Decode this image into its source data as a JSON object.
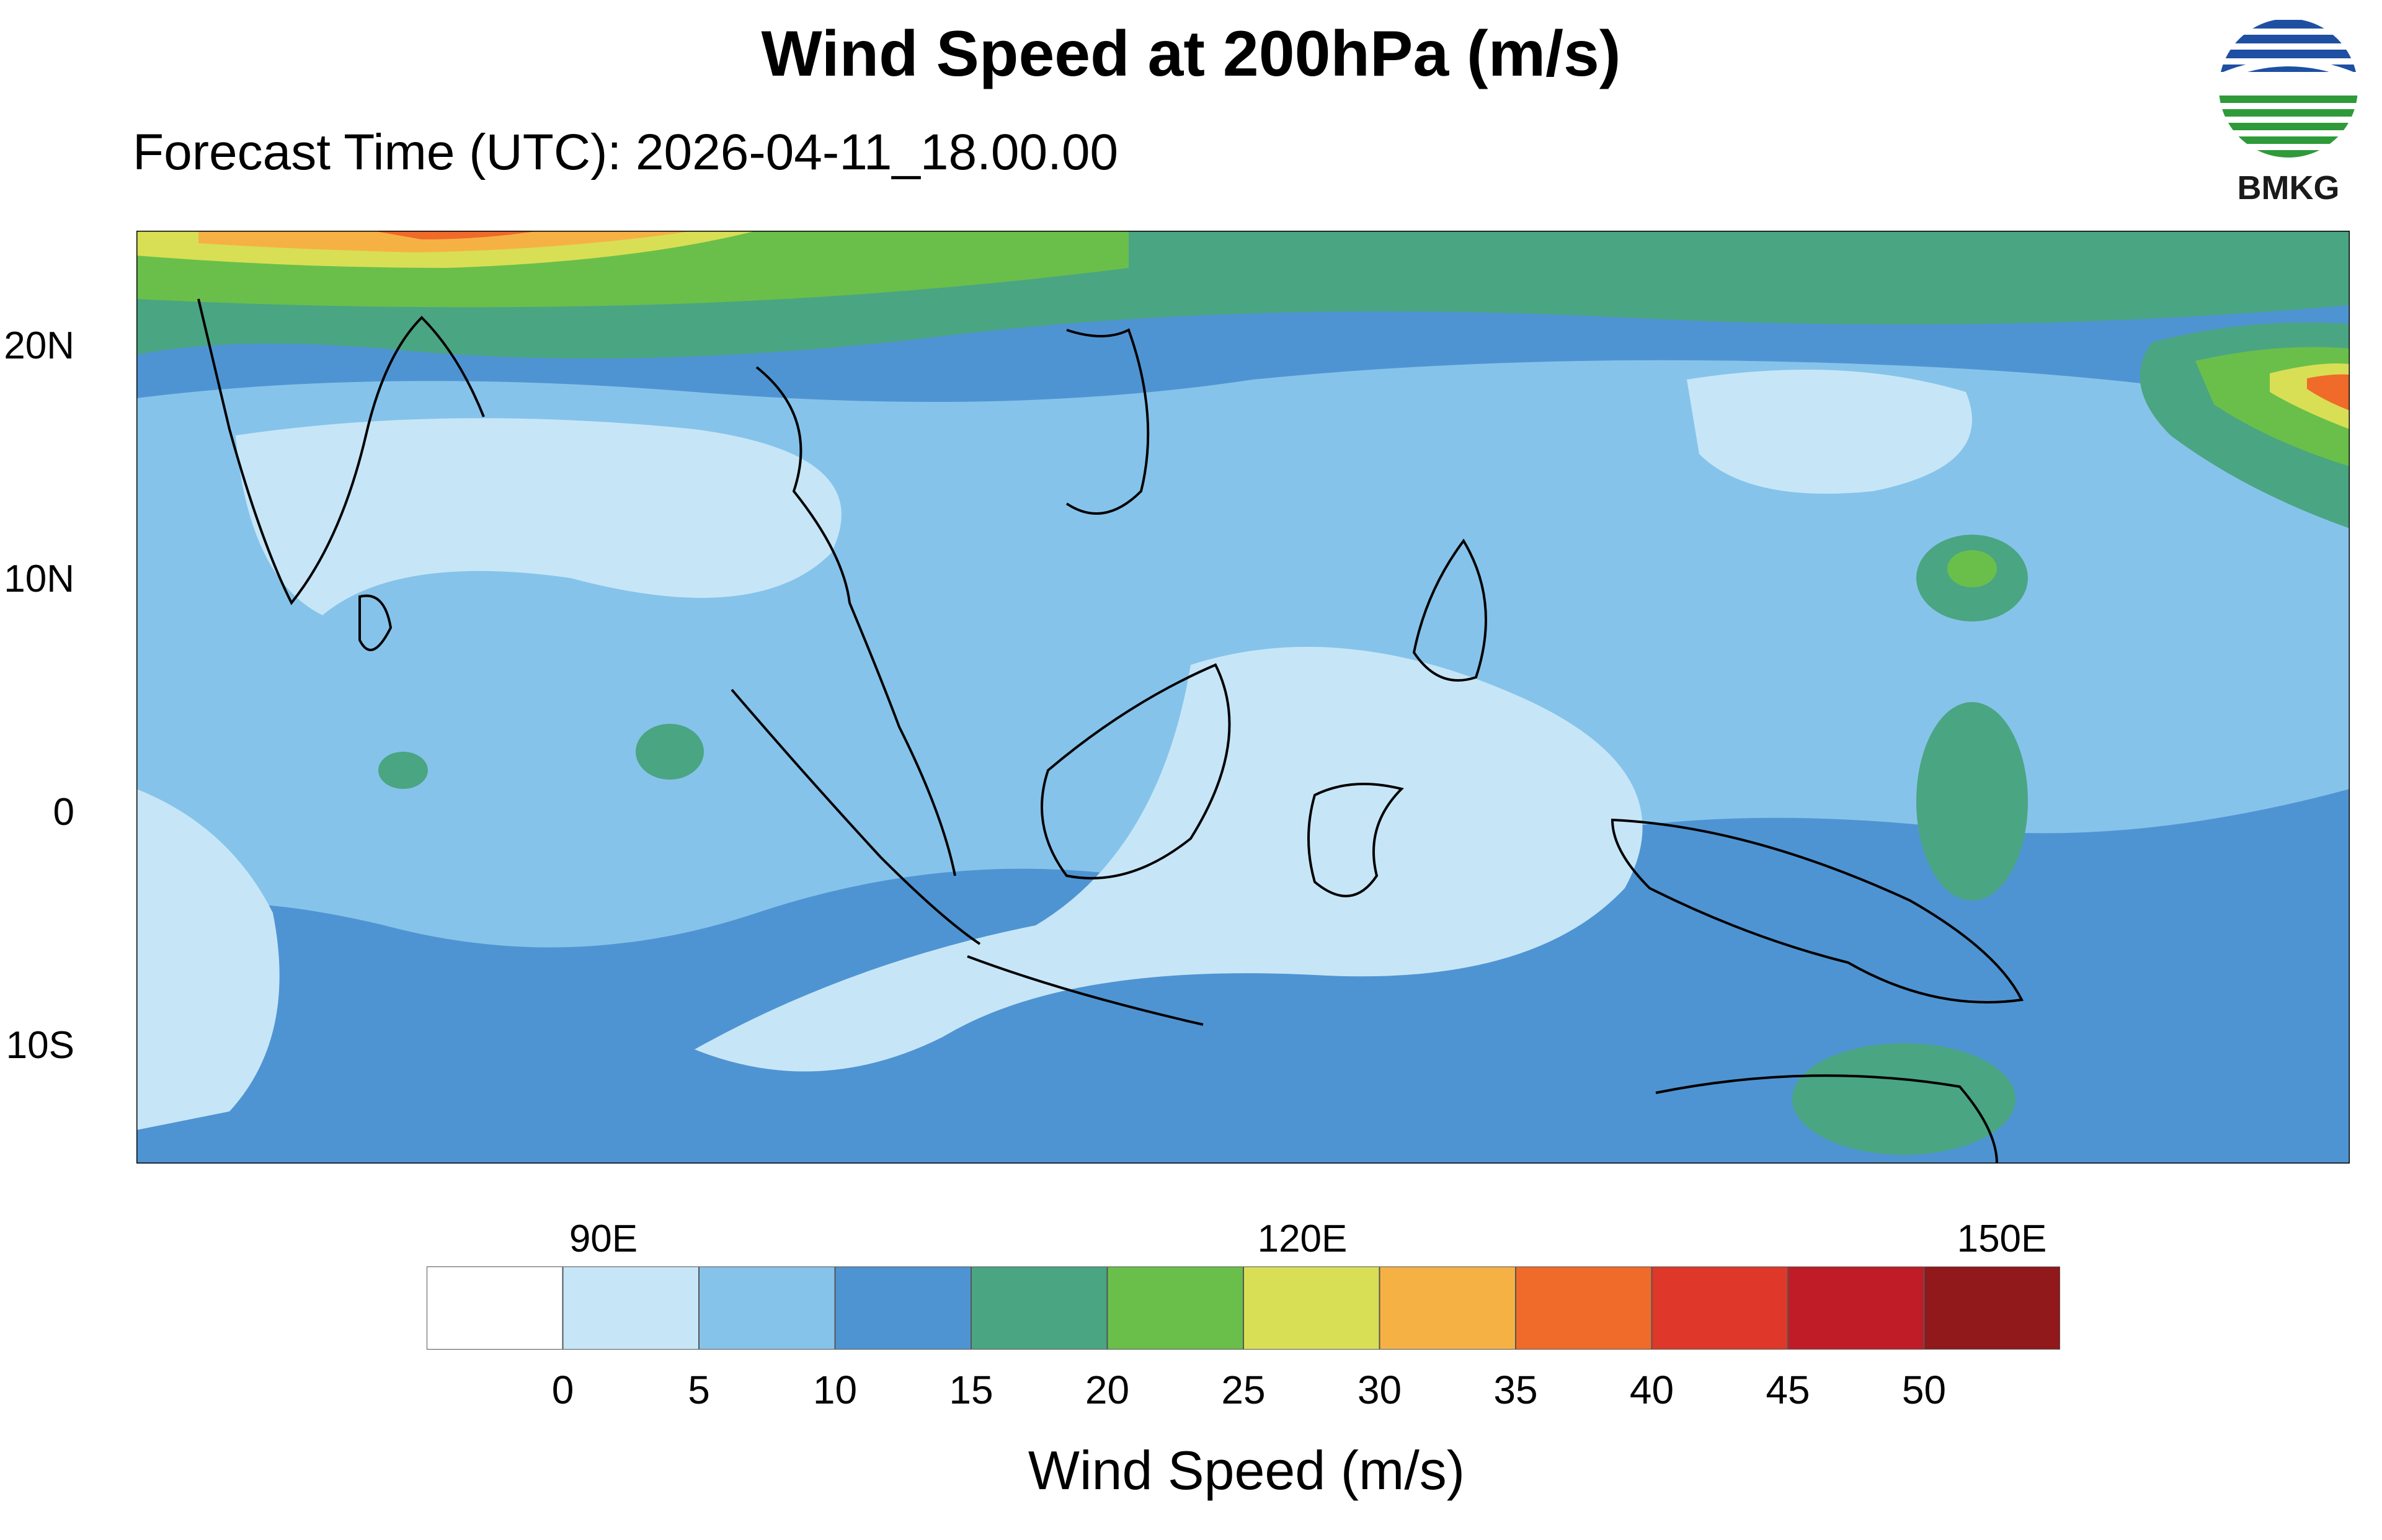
{
  "title": "Wind Speed at 200hPa (m/s)",
  "subtitle": "Forecast Time (UTC): 2026-04-11_18.00.00",
  "logo": {
    "text": "BMKG",
    "colors": [
      "#1e4fa3",
      "#2e9a3a",
      "#ffffff"
    ]
  },
  "map": {
    "lon_range": [
      70,
      165
    ],
    "lat_range": [
      -15,
      25
    ],
    "lat_labels": [
      "20N",
      "10N",
      "0",
      "10S"
    ],
    "lon_labels": [
      "90E",
      "120E",
      "150E"
    ]
  },
  "colorbar": {
    "title": "Wind Speed (m/s)",
    "tick_labels": [
      "0",
      "5",
      "10",
      "15",
      "20",
      "25",
      "30",
      "35",
      "40",
      "45",
      "50"
    ],
    "colors": [
      "#ffffff",
      "#c6e6f7",
      "#86c3ea",
      "#4f94d2",
      "#4aa582",
      "#6abf4b",
      "#d8df55",
      "#f6b145",
      "#f06a2a",
      "#df3729",
      "#c01c27",
      "#91181b"
    ]
  }
}
